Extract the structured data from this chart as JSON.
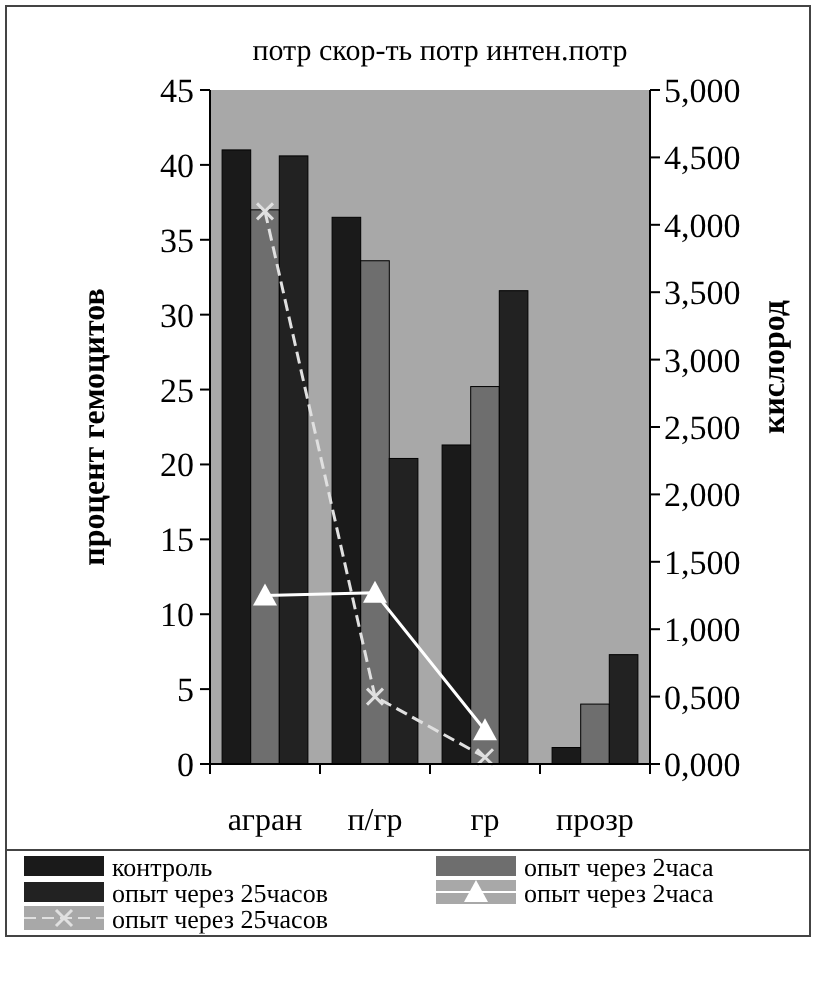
{
  "chart_data": {
    "type": "bar",
    "title": "потр  скор-ть потр  интен.потр",
    "ylabel": "процент гемоцитов",
    "y2label": "кислород",
    "categories": [
      "агран",
      "п/гр",
      "гр",
      "прозр"
    ],
    "series": [
      {
        "name": "контроль",
        "color": "#1a1a1a",
        "values": [
          41,
          36.5,
          21.3,
          1.1
        ]
      },
      {
        "name": "опыт через 2часа",
        "color": "#6e6e6e",
        "values": [
          37,
          33.6,
          25.2,
          4.0
        ]
      },
      {
        "name": "опыт через 25часов",
        "color": "#222222",
        "values": [
          40.6,
          20.4,
          31.6,
          7.3
        ]
      },
      {
        "name": "опыт через 2часа",
        "type": "line",
        "axis": "y2",
        "color": "#ffffff",
        "marker": "triangle",
        "line_style": "solid",
        "values": [
          1.25,
          1.27,
          0.25,
          null
        ]
      },
      {
        "name": "опыт через 25часов",
        "type": "line",
        "axis": "y2",
        "color": "#e0e0e0",
        "marker": "cross",
        "line_style": "dashed",
        "values": [
          4.1,
          0.5,
          0.05,
          null
        ]
      }
    ],
    "ylim": [
      0,
      45
    ],
    "yticks": [
      0,
      5,
      10,
      15,
      20,
      25,
      30,
      35,
      40,
      45
    ],
    "y2lim": [
      0,
      5
    ],
    "y2ticks": [
      {
        "value": 0,
        "label": "0,000"
      },
      {
        "value": 0.5,
        "label": "0,500"
      },
      {
        "value": 1,
        "label": "1,000"
      },
      {
        "value": 1.5,
        "label": "1,500"
      },
      {
        "value": 2,
        "label": "2,000"
      },
      {
        "value": 2.5,
        "label": "2,500"
      },
      {
        "value": 3,
        "label": "3,000"
      },
      {
        "value": 3.5,
        "label": "3,500"
      },
      {
        "value": 4,
        "label": "4,000"
      },
      {
        "value": 4.5,
        "label": "4,500"
      },
      {
        "value": 5,
        "label": "5,000"
      }
    ],
    "legend": "bottom",
    "grid": false
  }
}
